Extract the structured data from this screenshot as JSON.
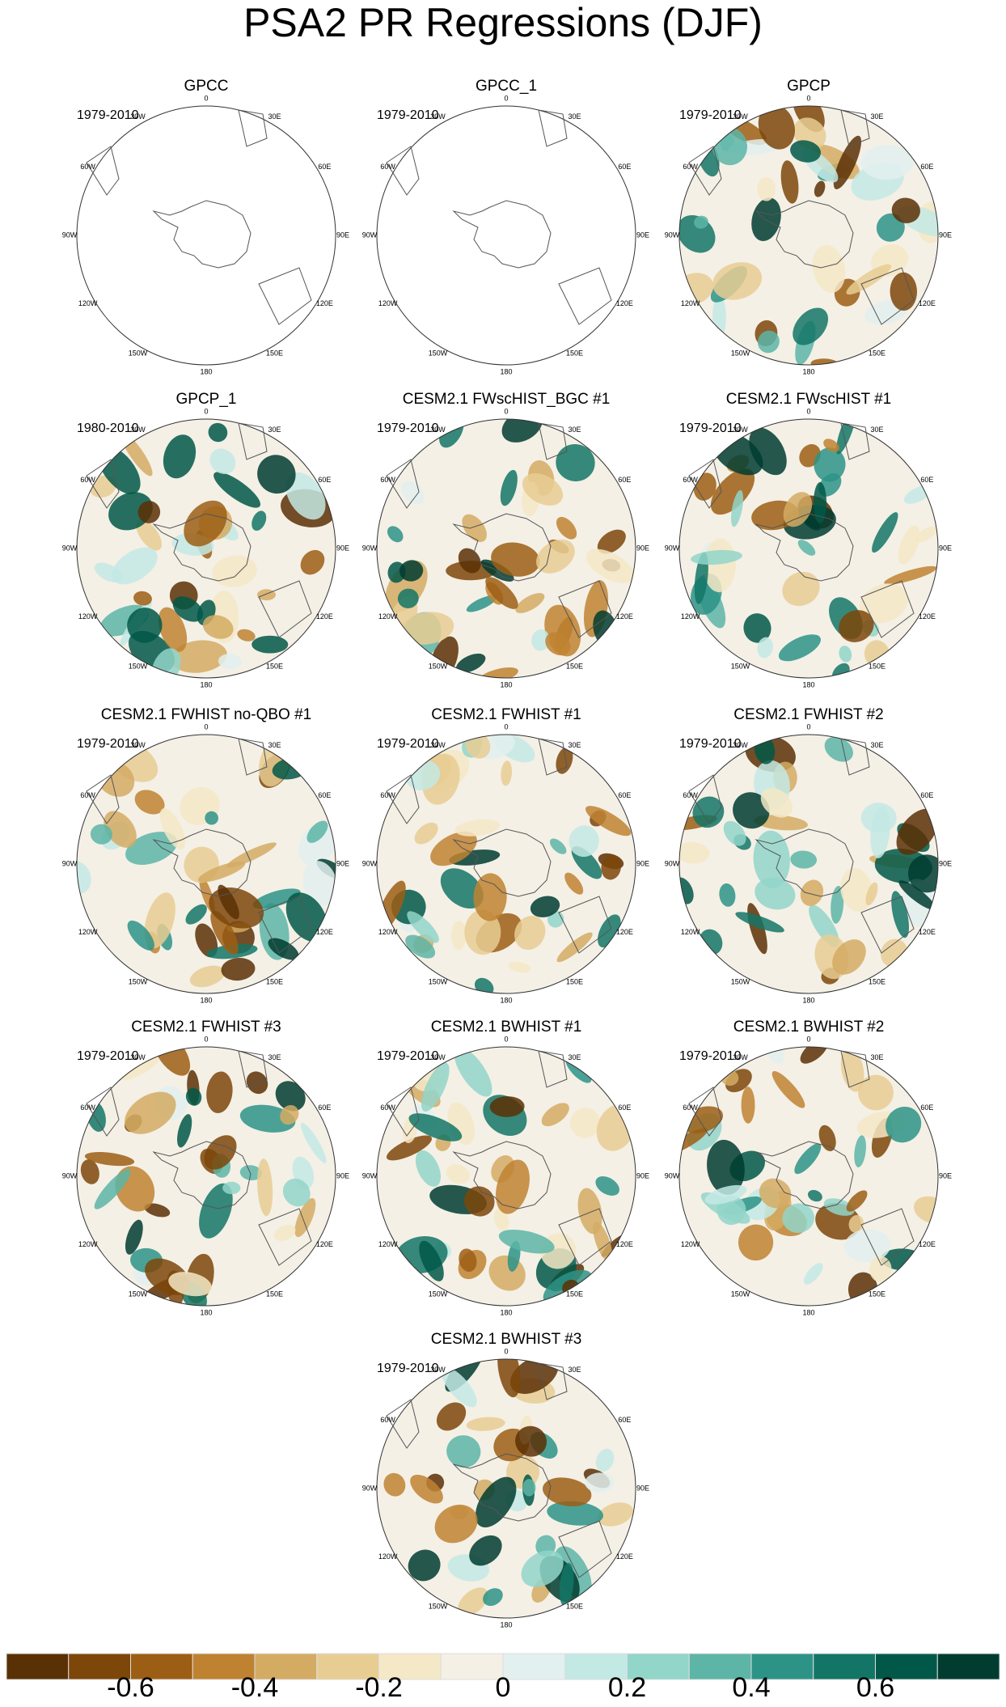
{
  "chart_data": {
    "type": "map",
    "title": "PSA2 PR Regressions (DJF)",
    "lon_labels": [
      "0",
      "30E",
      "60E",
      "90E",
      "120E",
      "150E",
      "180",
      "150W",
      "120W",
      "90W",
      "60W",
      "30W"
    ],
    "panels": [
      {
        "title": "GPCC",
        "period": "1979-2010",
        "fill": "#ffffff"
      },
      {
        "title": "GPCC_1",
        "period": "1979-2010",
        "fill": "#ffffff"
      },
      {
        "title": "GPCP",
        "period": "1979-2010",
        "fill": "#f4f0e6"
      },
      {
        "title": "GPCP_1",
        "period": "1980-2010",
        "fill": "#f4f0e6"
      },
      {
        "title": "CESM2.1 FWscHIST_BGC #1",
        "period": "1979-2010",
        "fill": "#f4f0e6"
      },
      {
        "title": "CESM2.1 FWscHIST #1",
        "period": "1979-2010",
        "fill": "#f4f0e6"
      },
      {
        "title": "CESM2.1 FWHIST no-QBO #1",
        "period": "1979-2010",
        "fill": "#f4f0e6"
      },
      {
        "title": "CESM2.1 FWHIST #1",
        "period": "1979-2010",
        "fill": "#f4f0e6"
      },
      {
        "title": "CESM2.1 FWHIST #2",
        "period": "1979-2010",
        "fill": "#f4f0e6"
      },
      {
        "title": "CESM2.1 FWHIST #3",
        "period": "1979-2010",
        "fill": "#f4f0e6"
      },
      {
        "title": "CESM2.1 BWHIST #1",
        "period": "1979-2010",
        "fill": "#f4f0e6"
      },
      {
        "title": "CESM2.1 BWHIST #2",
        "period": "1979-2010",
        "fill": "#f4f0e6"
      },
      {
        "title": "CESM2.1 BWHIST #3",
        "period": "1979-2010",
        "fill": "#f4f0e6"
      }
    ],
    "colorbar": {
      "colors": [
        "#5a3005",
        "#7d4709",
        "#9c5e14",
        "#bf8231",
        "#d3ab63",
        "#e8cd93",
        "#f5e8c6",
        "#f4f0e6",
        "#e2f0ef",
        "#c3e9e4",
        "#92d5c9",
        "#5cb5a7",
        "#2d9387",
        "#137566",
        "#015848",
        "#003c30"
      ],
      "xlim": [
        -0.8,
        0.8
      ],
      "xticks": [
        -0.6,
        -0.4,
        -0.2,
        0,
        0.2,
        0.4,
        0.6
      ]
    }
  }
}
